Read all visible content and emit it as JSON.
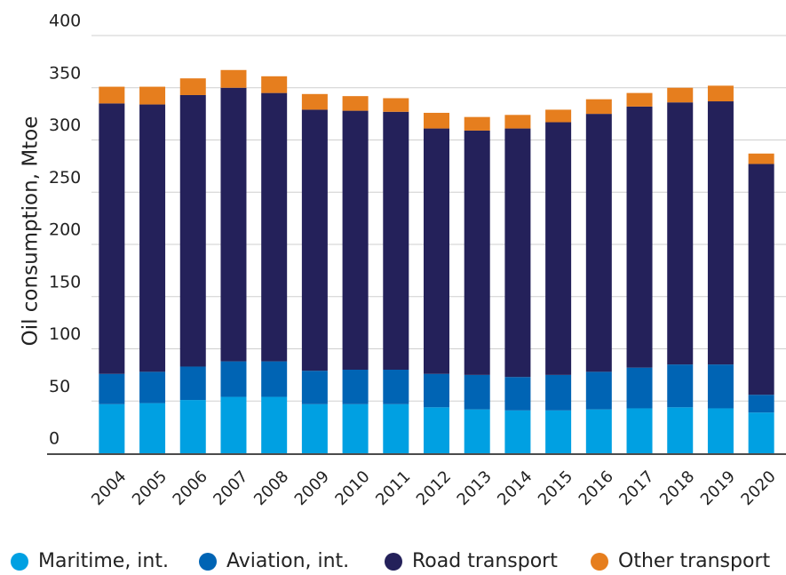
{
  "chart_data": {
    "type": "stacked_bar",
    "y_label": "Oil consumption, Mtoe",
    "categories": [
      "2004",
      "2005",
      "2006",
      "2007",
      "2008",
      "2009",
      "2010",
      "2011",
      "2012",
      "2013",
      "2014",
      "2015",
      "2016",
      "2017",
      "2018",
      "2019",
      "2020"
    ],
    "series": [
      {
        "name": "Maritime, int.",
        "color": "#00a0e2",
        "values": [
          47,
          48,
          51,
          54,
          54,
          47,
          47,
          47,
          44,
          42,
          41,
          41,
          42,
          43,
          44,
          43,
          39
        ]
      },
      {
        "name": "Aviation, int.",
        "color": "#0064b4",
        "values": [
          29,
          30,
          32,
          34,
          34,
          32,
          33,
          33,
          32,
          33,
          32,
          34,
          36,
          39,
          41,
          42,
          17
        ]
      },
      {
        "name": "Road transport",
        "color": "#24215a",
        "values": [
          259,
          256,
          260,
          262,
          257,
          250,
          248,
          247,
          235,
          234,
          238,
          242,
          247,
          250,
          251,
          252,
          221
        ]
      },
      {
        "name": "Other transport",
        "color": "#e67e1e",
        "values": [
          16,
          17,
          16,
          17,
          16,
          15,
          14,
          13,
          15,
          13,
          13,
          12,
          14,
          13,
          14,
          15,
          10
        ]
      }
    ],
    "ylim": [
      0,
      400
    ],
    "yticks": [
      0,
      50,
      100,
      150,
      200,
      250,
      300,
      350,
      400
    ],
    "grid": true
  }
}
